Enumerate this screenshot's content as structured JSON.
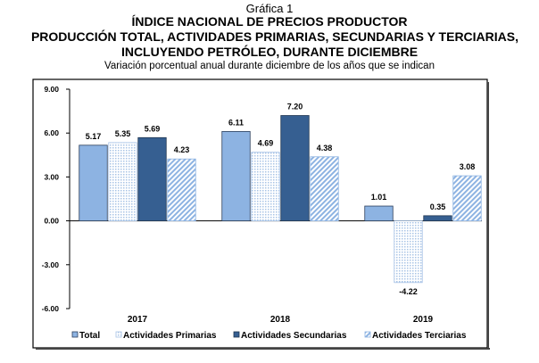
{
  "header": {
    "label": "Gráfica 1",
    "title1": "ÍNDICE NACIONAL DE PRECIOS PRODUCTOR",
    "title2": "PRODUCCIÓN TOTAL, ACTIVIDADES PRIMARIAS, SECUNDARIAS Y TERCIARIAS,",
    "title3": "INCLUYENDO PETRÓLEO, DURANTE DICIEMBRE",
    "subtitle": "Variación porcentual anual durante diciembre de los años que se indican"
  },
  "chart_data": {
    "type": "bar",
    "title": "ÍNDICE NACIONAL DE PRECIOS PRODUCTOR",
    "categories": [
      "2017",
      "2018",
      "2019"
    ],
    "series": [
      {
        "name": "Total",
        "values": [
          5.17,
          6.11,
          1.01
        ],
        "color": "#8DB3E2"
      },
      {
        "name": "Actividades Primarias",
        "values": [
          5.35,
          4.69,
          -4.22
        ],
        "color": "#C6D9F1"
      },
      {
        "name": "Actividades Secundarias",
        "values": [
          5.69,
          7.2,
          0.35
        ],
        "color": "#365F91"
      },
      {
        "name": "Actividades Terciarias",
        "values": [
          4.23,
          4.38,
          3.08
        ],
        "color": "#8DB3E2"
      }
    ],
    "yticks": [
      "9.00",
      "6.00",
      "3.00",
      "0.00",
      "-3.00",
      "-6.00"
    ],
    "ylim": [
      -6,
      9
    ],
    "legend": "bottom",
    "grid": false
  }
}
